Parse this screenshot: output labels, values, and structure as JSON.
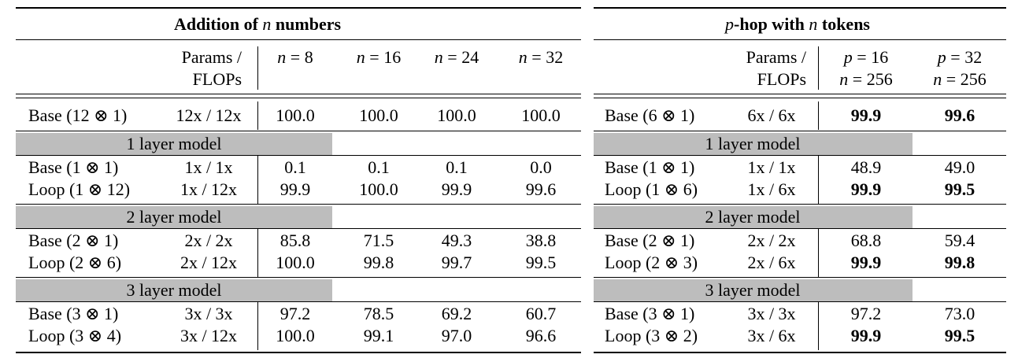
{
  "left": {
    "title_pre": "Addition of ",
    "title_var": "n",
    "title_post": " numbers",
    "params_line1": "Params /",
    "params_line2": "FLOPs",
    "col_var": "n",
    "col_eq": " = ",
    "cols": [
      "8",
      "16",
      "24",
      "32"
    ],
    "base": {
      "model": "Base (12 ⊗ 1)",
      "params": "12x / 12x",
      "values": [
        "100.0",
        "100.0",
        "100.0",
        "100.0"
      ]
    },
    "groups": [
      {
        "label": "1 layer model",
        "rows": [
          {
            "model": "Base (1 ⊗ 1)",
            "params": "1x / 1x",
            "values": [
              "0.1",
              "0.1",
              "0.1",
              "0.0"
            ]
          },
          {
            "model": "Loop (1 ⊗ 12)",
            "params": "1x / 12x",
            "values": [
              "99.9",
              "100.0",
              "99.9",
              "99.6"
            ]
          }
        ]
      },
      {
        "label": "2 layer model",
        "rows": [
          {
            "model": "Base (2 ⊗ 1)",
            "params": "2x / 2x",
            "values": [
              "85.8",
              "71.5",
              "49.3",
              "38.8"
            ]
          },
          {
            "model": "Loop (2 ⊗ 6)",
            "params": "2x / 12x",
            "values": [
              "100.0",
              "99.8",
              "99.7",
              "99.5"
            ]
          }
        ]
      },
      {
        "label": "3 layer model",
        "rows": [
          {
            "model": "Base (3 ⊗ 1)",
            "params": "3x / 3x",
            "values": [
              "97.2",
              "78.5",
              "69.2",
              "60.7"
            ]
          },
          {
            "model": "Loop (3 ⊗ 4)",
            "params": "3x / 12x",
            "values": [
              "100.0",
              "99.1",
              "97.0",
              "96.6"
            ]
          }
        ]
      }
    ]
  },
  "right": {
    "title_var": "p",
    "title_post": "-hop with ",
    "title_var2": "n",
    "title_post2": " tokens",
    "params_line1": "Params /",
    "params_line2": "FLOPs",
    "col_top_var": "p",
    "col_bot_var": "n",
    "col_eq": " = ",
    "cols": [
      {
        "p": "16",
        "n": "256"
      },
      {
        "p": "32",
        "n": "256"
      }
    ],
    "base": {
      "model": "Base (6 ⊗ 1)",
      "params": "6x / 6x",
      "values": [
        "99.9",
        "99.6"
      ],
      "bold": [
        true,
        true
      ]
    },
    "groups": [
      {
        "label": "1 layer model",
        "rows": [
          {
            "model": "Base (1 ⊗ 1)",
            "params": "1x / 1x",
            "values": [
              "48.9",
              "49.0"
            ],
            "bold": [
              false,
              false
            ]
          },
          {
            "model": "Loop (1 ⊗ 6)",
            "params": "1x / 6x",
            "values": [
              "99.9",
              "99.5"
            ],
            "bold": [
              true,
              true
            ]
          }
        ]
      },
      {
        "label": "2 layer model",
        "rows": [
          {
            "model": "Base (2 ⊗ 1)",
            "params": "2x / 2x",
            "values": [
              "68.8",
              "59.4"
            ],
            "bold": [
              false,
              false
            ]
          },
          {
            "model": "Loop (2 ⊗ 3)",
            "params": "2x / 6x",
            "values": [
              "99.9",
              "99.8"
            ],
            "bold": [
              true,
              true
            ]
          }
        ]
      },
      {
        "label": "3 layer model",
        "rows": [
          {
            "model": "Base (3 ⊗ 1)",
            "params": "3x / 3x",
            "values": [
              "97.2",
              "73.0"
            ],
            "bold": [
              false,
              false
            ]
          },
          {
            "model": "Loop (3 ⊗ 2)",
            "params": "3x / 6x",
            "values": [
              "99.9",
              "99.5"
            ],
            "bold": [
              true,
              true
            ]
          }
        ]
      }
    ]
  }
}
